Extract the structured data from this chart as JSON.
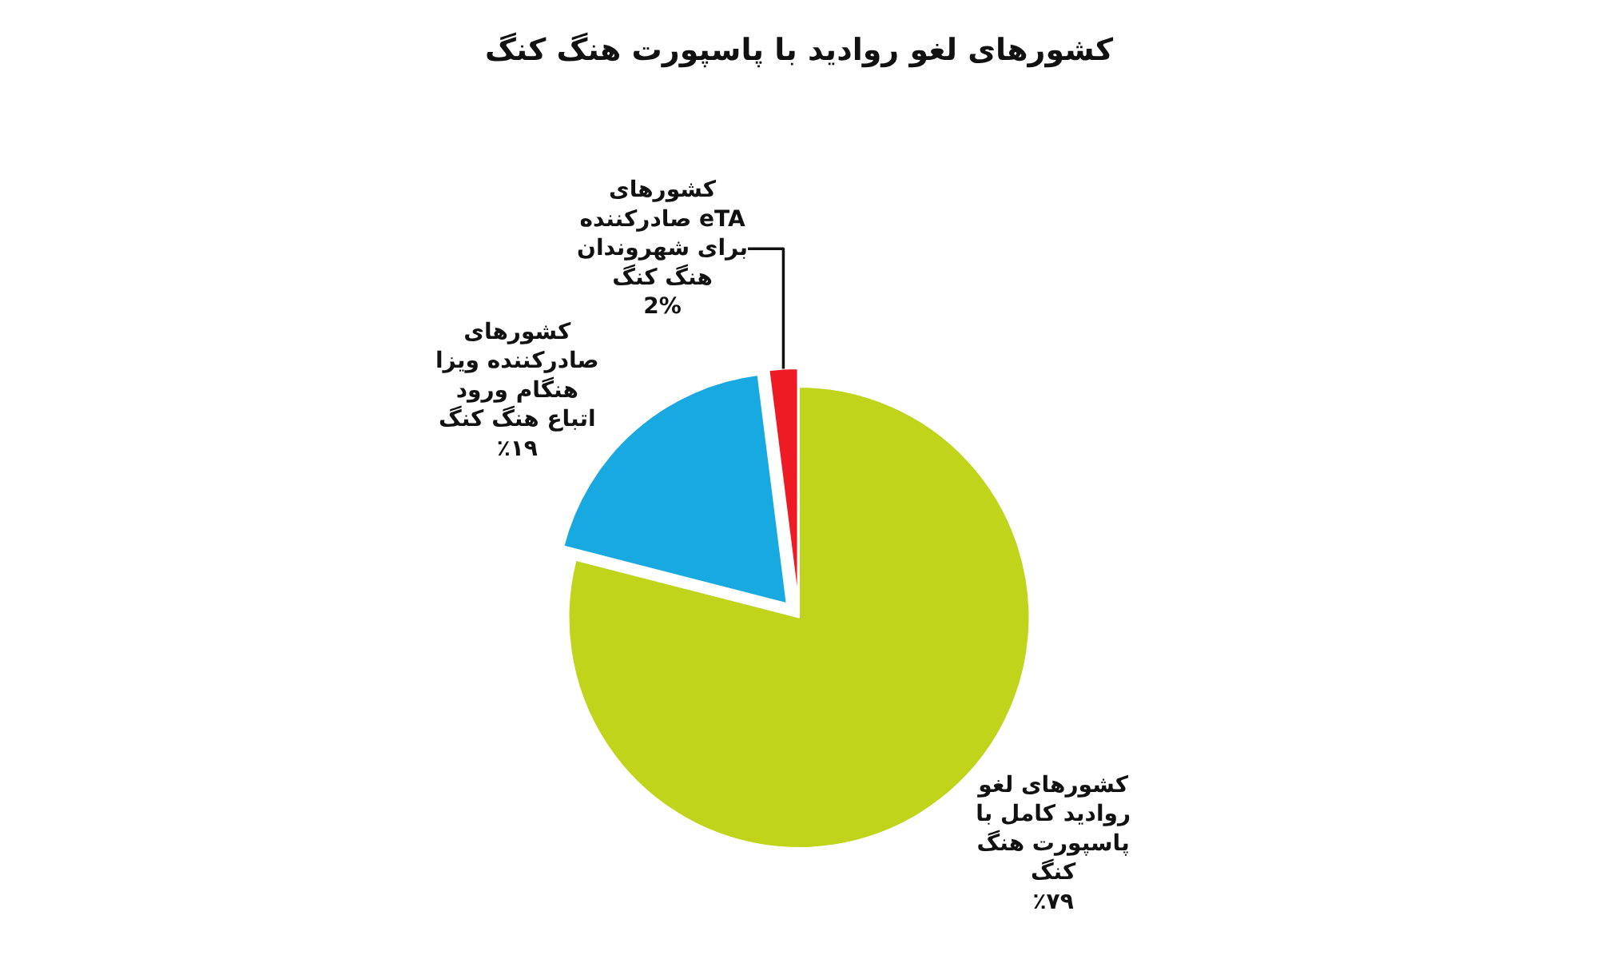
{
  "chart_data": {
    "type": "pie",
    "title": "کشورهای لغو روادید با پاسپورت هنگ کنگ",
    "categories": [
      "کشورهای لغو روادید کامل با پاسپورت هنگ کنگ",
      "کشورهای صادرکننده ویزا هنگام ورود اتباع هنگ کنگ",
      "کشورهای صادرکننده eTA برای شهروندان هنگ کنگ"
    ],
    "values": [
      79,
      19,
      2
    ],
    "value_labels": [
      "٪۷۹",
      "٪۱۹",
      "2%"
    ],
    "colors": [
      "#bfd41a",
      "#19a9e1",
      "#ee1b24"
    ],
    "legend": false
  }
}
